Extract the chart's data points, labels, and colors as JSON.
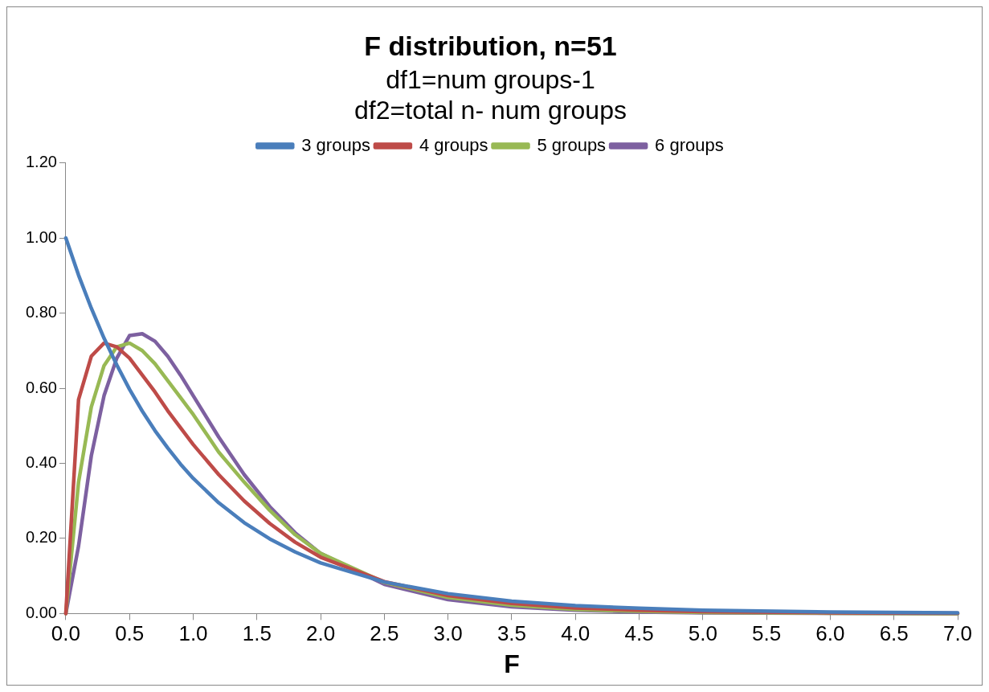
{
  "chart_data": {
    "type": "line",
    "title": "F distribution, n=51",
    "subtitle": "df1=num groups-1\ndf2=total n- num groups",
    "xlabel": "F",
    "x": [
      0,
      0.1,
      0.2,
      0.3,
      0.4,
      0.5,
      0.6,
      0.7,
      0.8,
      0.9,
      1.0,
      1.2,
      1.4,
      1.6,
      1.8,
      2.0,
      2.5,
      3.0,
      3.5,
      4.0,
      4.5,
      5.0,
      6.0,
      7.0
    ],
    "series": [
      {
        "name": "3 groups",
        "color": "#4a7ebb",
        "values": [
          1.0,
          0.901,
          0.813,
          0.733,
          0.662,
          0.597,
          0.539,
          0.487,
          0.441,
          0.398,
          0.36,
          0.295,
          0.242,
          0.199,
          0.164,
          0.135,
          0.084,
          0.053,
          0.033,
          0.021,
          0.014,
          0.009,
          0.004,
          0.002
        ]
      },
      {
        "name": "4 groups",
        "color": "#be4b48",
        "values": [
          0,
          0.57,
          0.685,
          0.72,
          0.71,
          0.68,
          0.635,
          0.59,
          0.54,
          0.495,
          0.45,
          0.37,
          0.3,
          0.24,
          0.19,
          0.15,
          0.085,
          0.048,
          0.027,
          0.015,
          0.009,
          0.005,
          0.002,
          0.001
        ]
      },
      {
        "name": "5 groups",
        "color": "#98b954",
        "values": [
          0,
          0.35,
          0.55,
          0.66,
          0.71,
          0.72,
          0.7,
          0.665,
          0.62,
          0.575,
          0.53,
          0.43,
          0.35,
          0.275,
          0.21,
          0.16,
          0.083,
          0.043,
          0.022,
          0.011,
          0.006,
          0.003,
          0.001,
          0
        ]
      },
      {
        "name": "6 groups",
        "color": "#7d60a0",
        "values": [
          0,
          0.18,
          0.42,
          0.58,
          0.68,
          0.74,
          0.745,
          0.725,
          0.685,
          0.635,
          0.58,
          0.47,
          0.37,
          0.285,
          0.215,
          0.16,
          0.078,
          0.037,
          0.018,
          0.009,
          0.004,
          0.002,
          0.001,
          0
        ]
      }
    ],
    "xlim": [
      0,
      7
    ],
    "xticks": [
      {
        "value": 0,
        "label": "0.0"
      },
      {
        "value": 0.5,
        "label": "0.5"
      },
      {
        "value": 1,
        "label": "1.0"
      },
      {
        "value": 1.5,
        "label": "1.5"
      },
      {
        "value": 2,
        "label": "2.0"
      },
      {
        "value": 2.5,
        "label": "2.5"
      },
      {
        "value": 3,
        "label": "3.0"
      },
      {
        "value": 3.5,
        "label": "3.5"
      },
      {
        "value": 4,
        "label": "4.0"
      },
      {
        "value": 4.5,
        "label": "4.5"
      },
      {
        "value": 5,
        "label": "5.0"
      },
      {
        "value": 5.5,
        "label": "5.5"
      },
      {
        "value": 6,
        "label": "6.0"
      },
      {
        "value": 6.5,
        "label": "6.5"
      },
      {
        "value": 7,
        "label": "7.0"
      }
    ],
    "ylim": [
      0,
      1.2
    ],
    "yticks": [
      {
        "value": 0,
        "label": "0.00"
      },
      {
        "value": 0.2,
        "label": "0.20"
      },
      {
        "value": 0.4,
        "label": "0.40"
      },
      {
        "value": 0.6,
        "label": "0.60"
      },
      {
        "value": 0.8,
        "label": "0.80"
      },
      {
        "value": 1.0,
        "label": "1.00"
      },
      {
        "value": 1.2,
        "label": "1.20"
      }
    ],
    "grid": false,
    "legend": "top",
    "marker": "none",
    "line_style": "solid"
  }
}
